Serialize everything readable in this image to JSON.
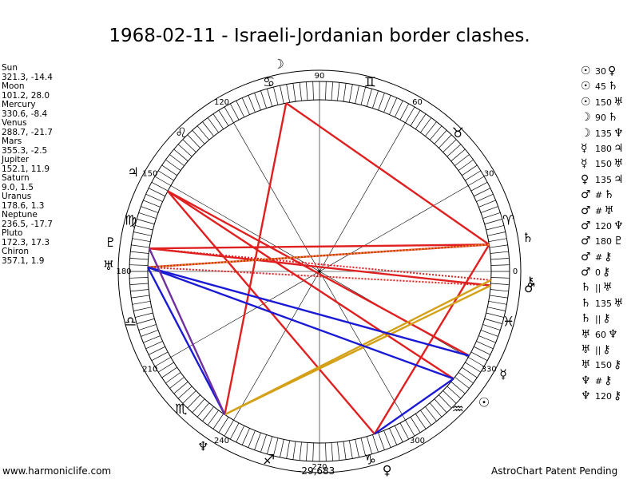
{
  "title": "1968-02-11 - Israeli-Jordanian border clashes.",
  "planets": [
    {
      "name": "Sun",
      "coords": "321.3, -14.4",
      "glyph": "☉",
      "lon": 321.3
    },
    {
      "name": "Moon",
      "coords": "101.2, 28.0",
      "glyph": "☽",
      "lon": 101.2
    },
    {
      "name": "Mercury",
      "coords": "330.6, -8.4",
      "glyph": "☿",
      "lon": 330.6
    },
    {
      "name": "Venus",
      "coords": "288.7, -21.7",
      "glyph": "♀",
      "lon": 288.7
    },
    {
      "name": "Mars",
      "coords": "355.3, -2.5",
      "glyph": "♂",
      "lon": 355.3
    },
    {
      "name": "Jupiter",
      "coords": "152.1, 11.9",
      "glyph": "♃",
      "lon": 152.1
    },
    {
      "name": "Saturn",
      "coords": "9.0, 1.5",
      "glyph": "♄",
      "lon": 9.0
    },
    {
      "name": "Uranus",
      "coords": "178.6, 1.3",
      "glyph": "♅",
      "lon": 178.6
    },
    {
      "name": "Neptune",
      "coords": "236.5, -17.7",
      "glyph": "♆",
      "lon": 236.5
    },
    {
      "name": "Pluto",
      "coords": "172.3, 17.3",
      "glyph": "♇",
      "lon": 172.3
    },
    {
      "name": "Chiron",
      "coords": "357.1, 1.9",
      "glyph": "⚷",
      "lon": 357.1
    }
  ],
  "aspects": [
    {
      "p1": "☉",
      "angle": "30",
      "p2": "♀",
      "sym": "☉"
    },
    {
      "p1": "☉",
      "angle": "45",
      "p2": "♄",
      "sym": "☉"
    },
    {
      "p1": "☉",
      "angle": "150",
      "p2": "♅",
      "sym": "☉"
    },
    {
      "p1": "☽",
      "angle": "90",
      "p2": "♄",
      "sym": "☽"
    },
    {
      "p1": "☽",
      "angle": "135",
      "p2": "♆",
      "sym": "☽"
    },
    {
      "p1": "☿",
      "angle": "180",
      "p2": "♃",
      "sym": "☿"
    },
    {
      "p1": "☿",
      "angle": "150",
      "p2": "♅",
      "sym": "☿"
    },
    {
      "p1": "♀",
      "angle": "135",
      "p2": "♃",
      "sym": "♀"
    },
    {
      "p1": "♂",
      "angle": "#",
      "p2": "♄",
      "sym": "♂"
    },
    {
      "p1": "♂",
      "angle": "#",
      "p2": "♅",
      "sym": "♂"
    },
    {
      "p1": "♂",
      "angle": "120",
      "p2": "♆",
      "sym": "♂"
    },
    {
      "p1": "♂",
      "angle": "180",
      "p2": "♇",
      "sym": "♂"
    },
    {
      "p1": "♂",
      "angle": "#",
      "p2": "⚷",
      "sym": "♂"
    },
    {
      "p1": "♂",
      "angle": "0",
      "p2": "⚷",
      "sym": "♂"
    },
    {
      "p1": "♄",
      "angle": "||",
      "p2": "♅",
      "sym": "♄"
    },
    {
      "p1": "♄",
      "angle": "135",
      "p2": "♅",
      "sym": "♄"
    },
    {
      "p1": "♄",
      "angle": "||",
      "p2": "⚷",
      "sym": "♄"
    },
    {
      "p1": "♅",
      "angle": "60",
      "p2": "♆",
      "sym": "♅"
    },
    {
      "p1": "♅",
      "angle": "||",
      "p2": "⚷",
      "sym": "♅"
    },
    {
      "p1": "♅",
      "angle": "150",
      "p2": "⚷",
      "sym": "♅"
    },
    {
      "p1": "♆",
      "angle": "#",
      "p2": "⚷",
      "sym": "♆"
    },
    {
      "p1": "♆",
      "angle": "120",
      "p2": "⚷",
      "sym": "♆"
    }
  ],
  "degree_labels": [
    "0",
    "30",
    "60",
    "90",
    "120",
    "150",
    "180",
    "210",
    "240",
    "270",
    "300",
    "330"
  ],
  "zodiac_glyphs": [
    "♈",
    "♉",
    "♊",
    "♋",
    "♌",
    "♍",
    "♎",
    "♏",
    "♐",
    "♑",
    "♒",
    "♓"
  ],
  "aspect_lines": [
    {
      "from": "Moon",
      "to": "Saturn",
      "color": "#e02020",
      "style": "solid"
    },
    {
      "from": "Moon",
      "to": "Neptune",
      "color": "#e02020",
      "style": "solid"
    },
    {
      "from": "Mercury",
      "to": "Jupiter",
      "color": "#e02020",
      "style": "solid"
    },
    {
      "from": "Venus",
      "to": "Jupiter",
      "color": "#e02020",
      "style": "solid"
    },
    {
      "from": "Mars",
      "to": "Pluto",
      "color": "#e02020",
      "style": "solid"
    },
    {
      "from": "Saturn",
      "to": "Uranus",
      "color": "#e02020",
      "style": "solid"
    },
    {
      "from": "Saturn",
      "to": "Pluto",
      "color": "#e02020",
      "style": "solid"
    },
    {
      "from": "Sun",
      "to": "Jupiter",
      "color": "#e02020",
      "style": "solid"
    },
    {
      "from": "Saturn",
      "to": "Venus",
      "color": "#e02020",
      "style": "solid"
    },
    {
      "from": "Mars",
      "to": "Uranus",
      "color": "#e02020",
      "style": "dotted"
    },
    {
      "from": "Chiron",
      "to": "Pluto",
      "color": "#e02020",
      "style": "dotted"
    },
    {
      "from": "Pluto",
      "to": "Neptune",
      "color": "#e02020",
      "style": "dotted"
    },
    {
      "from": "Saturn",
      "to": "Uranus",
      "color": "#d4a017",
      "style": "dotted"
    },
    {
      "from": "Mars",
      "to": "Neptune",
      "color": "#d4a017",
      "style": "solid"
    },
    {
      "from": "Chiron",
      "to": "Neptune",
      "color": "#d4a017",
      "style": "solid"
    },
    {
      "from": "Uranus",
      "to": "Mercury",
      "color": "#1a1ad6",
      "style": "solid"
    },
    {
      "from": "Uranus",
      "to": "Sun",
      "color": "#1a1ad6",
      "style": "solid"
    },
    {
      "from": "Sun",
      "to": "Venus",
      "color": "#1a1ad6",
      "style": "solid"
    },
    {
      "from": "Uranus",
      "to": "Neptune",
      "color": "#1a1ad6",
      "style": "solid"
    },
    {
      "from": "Pluto",
      "to": "Neptune",
      "color": "#7030a0",
      "style": "solid"
    }
  ],
  "footer": {
    "left": "www.harmoniclife.com",
    "center": "-29,683",
    "right": "AstroChart Patent Pending"
  }
}
